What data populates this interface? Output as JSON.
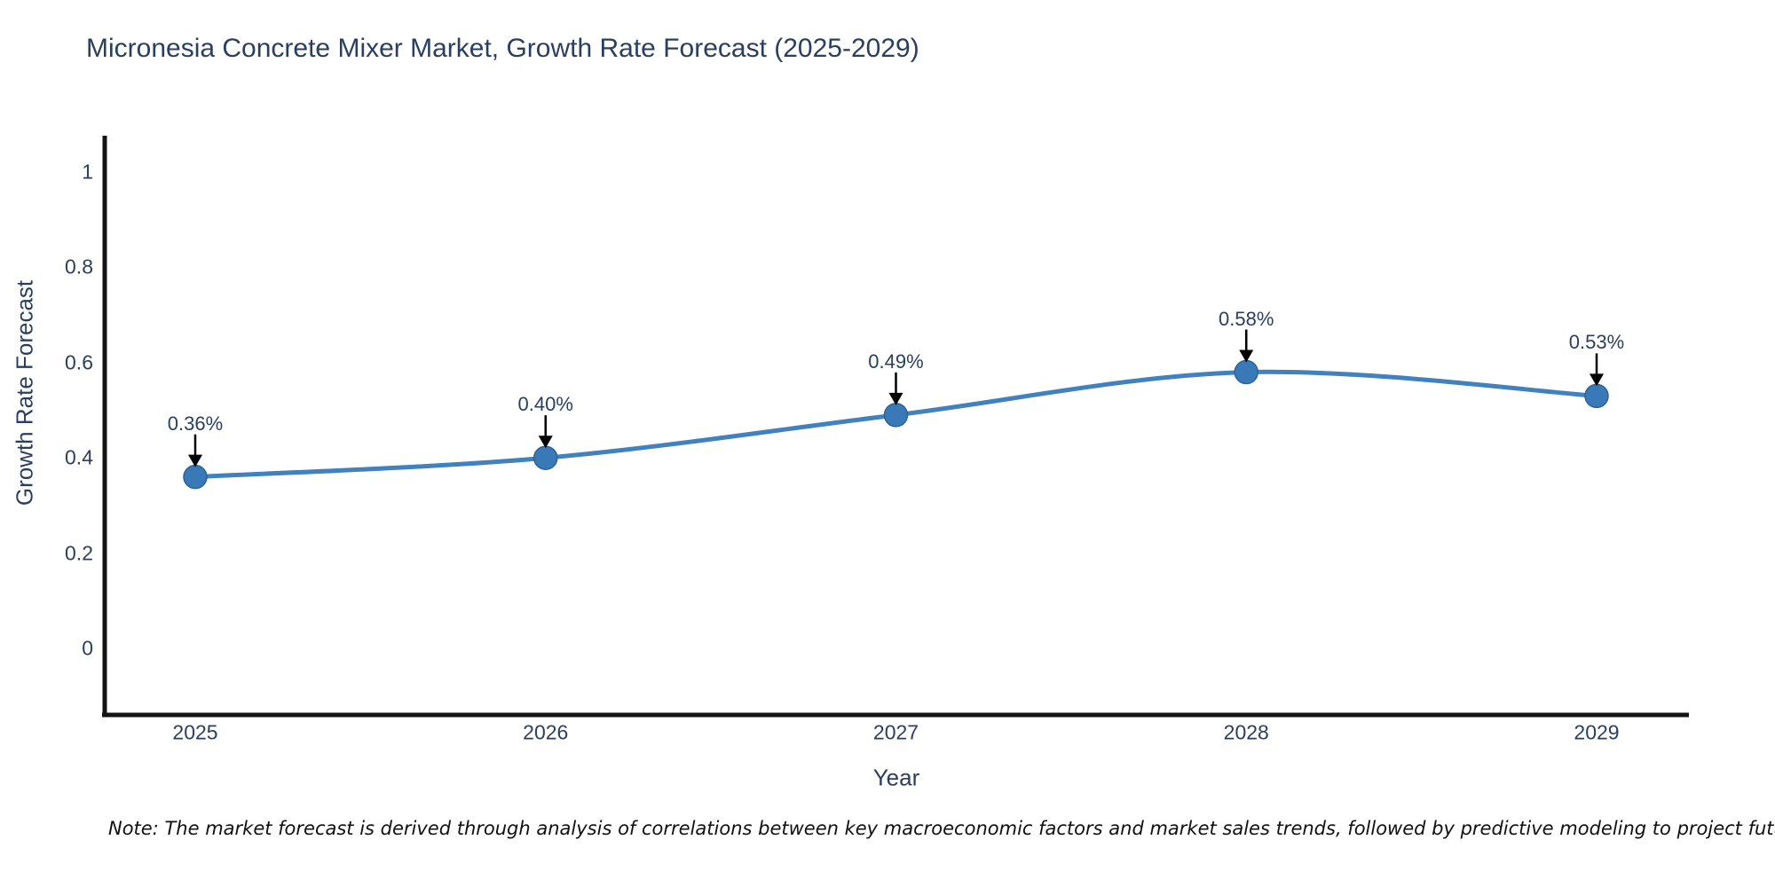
{
  "chart_data": {
    "type": "line",
    "title": "Micronesia Concrete Mixer Market, Growth Rate Forecast (2025-2029)",
    "categories": [
      "2025",
      "2026",
      "2027",
      "2028",
      "2029"
    ],
    "values": [
      0.36,
      0.4,
      0.49,
      0.58,
      0.53
    ],
    "annotations": [
      "0.36%",
      "0.40%",
      "0.49%",
      "0.58%",
      "0.53%"
    ],
    "xlabel": "Year",
    "ylabel": "Growth Rate Forecast",
    "yticks": [
      "0",
      "0.2",
      "0.4",
      "0.6",
      "0.8",
      "1"
    ],
    "ylim": [
      -0.14,
      1.08
    ],
    "grid": false,
    "legend_position": "none",
    "line_shape": "spline",
    "line_color": "#4181bd",
    "marker_color": "#3a79b8",
    "marker_edge_color": "#2e6294",
    "arrow_color": "#000000",
    "axis_color": "#131313",
    "text_color": "#2a3f5f"
  },
  "footnote": "Note: The market forecast is derived through analysis of correlations between key macroeconomic factors and market sales trends, followed by predictive modeling to project future sales volumes."
}
